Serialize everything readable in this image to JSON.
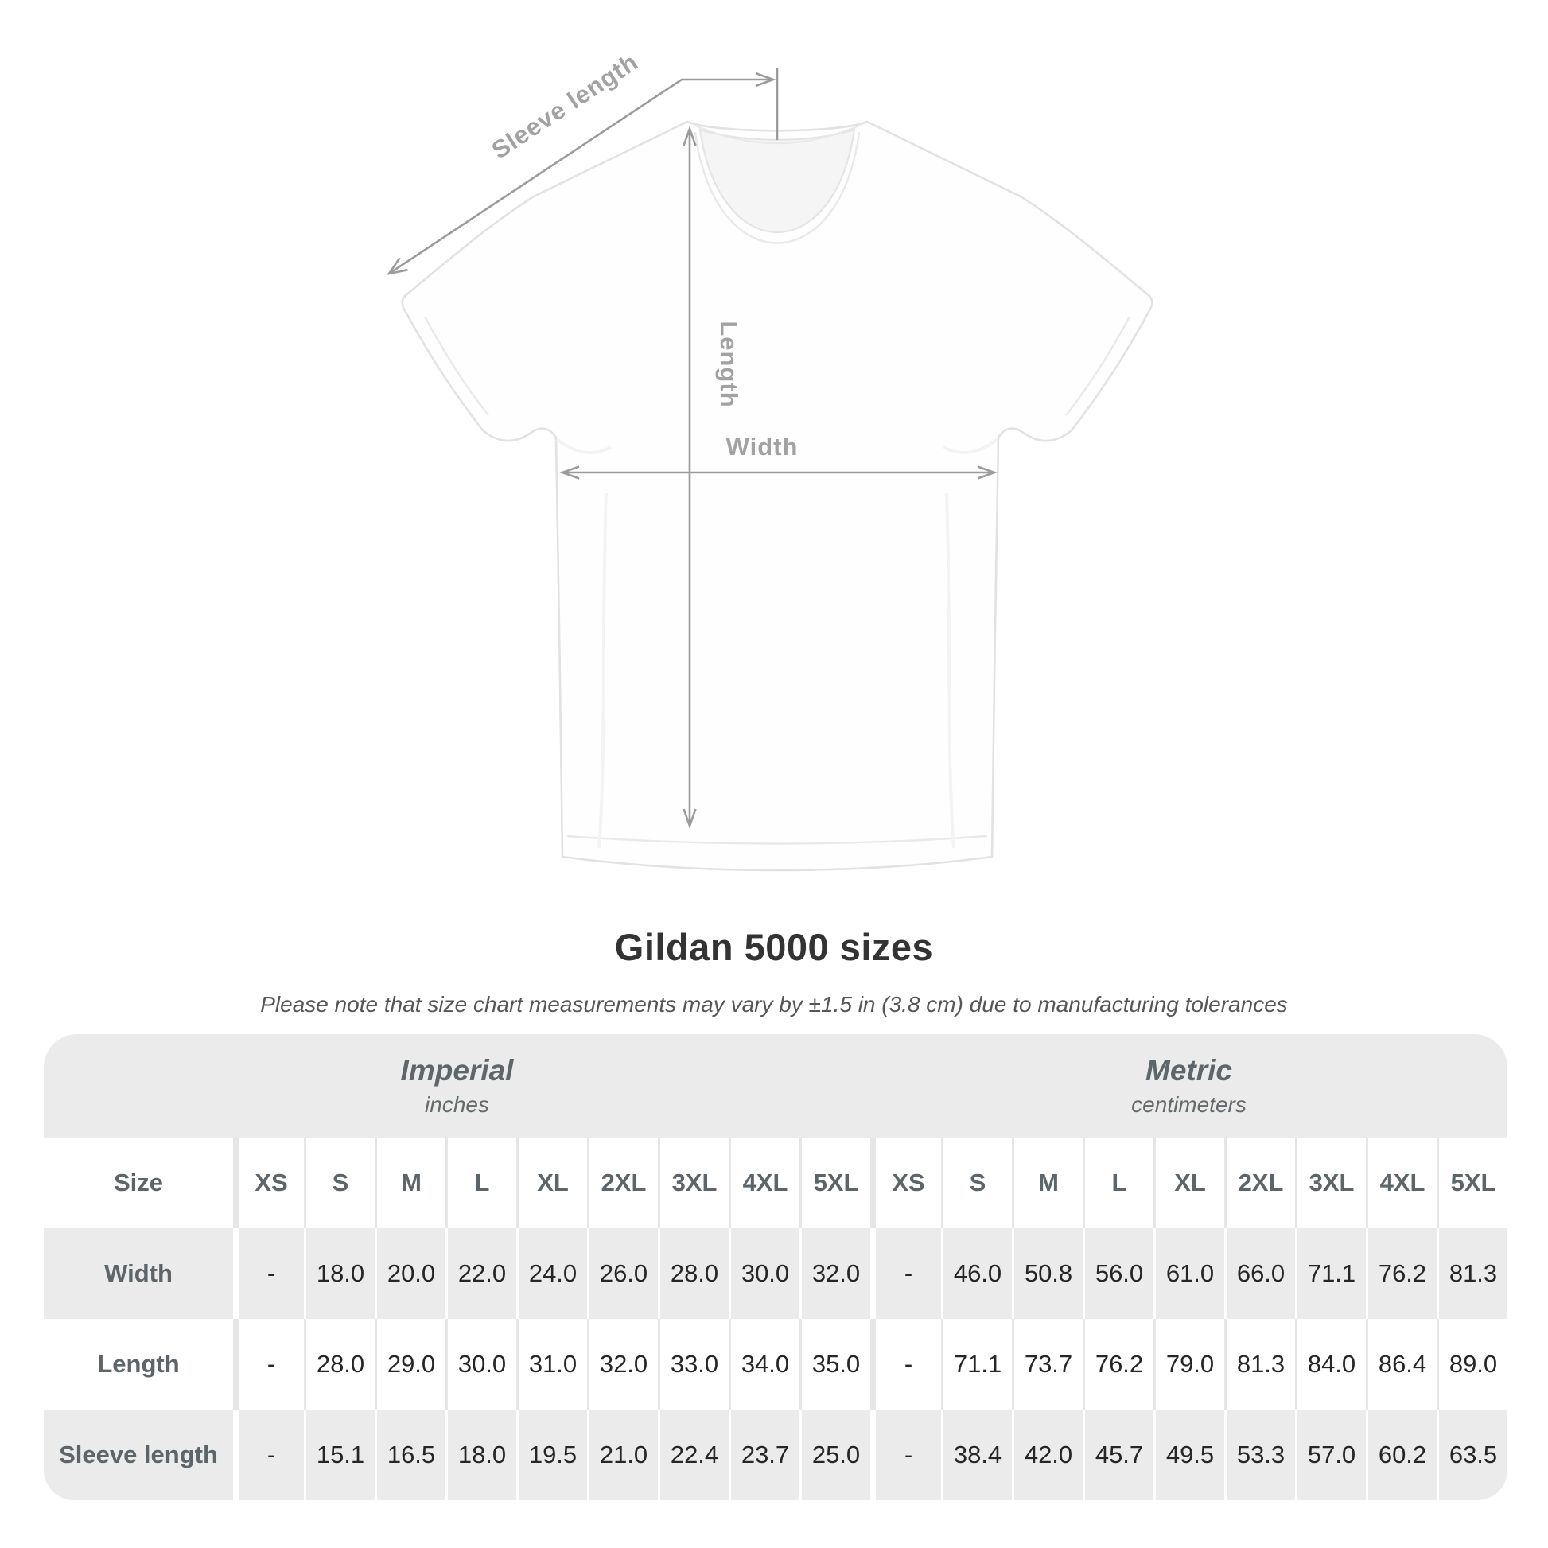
{
  "title": "Gildan 5000 sizes",
  "subtitle": "Please note that size chart measurements may vary by ±1.5 in (3.8 cm) due to manufacturing tolerances",
  "diagram": {
    "sleeve_length_label": "Sleeve length",
    "length_label": "Length",
    "width_label": "Width",
    "annotation_color": "#9b9b9b",
    "shirt_color": "#ffffff"
  },
  "table": {
    "size_header": "Size",
    "sizes": [
      "XS",
      "S",
      "M",
      "L",
      "XL",
      "2XL",
      "3XL",
      "4XL",
      "5XL"
    ],
    "groups": [
      {
        "label": "Imperial",
        "sublabel": "inches"
      },
      {
        "label": "Metric",
        "sublabel": "centimeters"
      }
    ],
    "rows": [
      {
        "label": "Width",
        "imperial": [
          "-",
          "18.0",
          "20.0",
          "22.0",
          "24.0",
          "26.0",
          "28.0",
          "30.0",
          "32.0"
        ],
        "metric": [
          "-",
          "46.0",
          "50.8",
          "56.0",
          "61.0",
          "66.0",
          "71.1",
          "76.2",
          "81.3"
        ]
      },
      {
        "label": "Length",
        "imperial": [
          "-",
          "28.0",
          "29.0",
          "30.0",
          "31.0",
          "32.0",
          "33.0",
          "34.0",
          "35.0"
        ],
        "metric": [
          "-",
          "71.1",
          "73.7",
          "76.2",
          "79.0",
          "81.3",
          "84.0",
          "86.4",
          "89.0"
        ]
      },
      {
        "label": "Sleeve length",
        "imperial": [
          "-",
          "15.1",
          "16.5",
          "18.0",
          "19.5",
          "21.0",
          "22.4",
          "23.7",
          "25.0"
        ],
        "metric": [
          "-",
          "38.4",
          "42.0",
          "45.7",
          "49.5",
          "53.3",
          "57.0",
          "60.2",
          "63.5"
        ]
      }
    ],
    "colors": {
      "band_bg": "#ebebeb",
      "alt_row_bg": "#ebebeb",
      "header_text": "#5c6569",
      "value_text": "#262626"
    }
  },
  "chart_data": {
    "type": "table",
    "title": "Gildan 5000 sizes",
    "note": "Please note that size chart measurements may vary by ±1.5 in (3.8 cm) due to manufacturing tolerances",
    "columns": [
      "Size",
      "XS",
      "S",
      "M",
      "L",
      "XL",
      "2XL",
      "3XL",
      "4XL",
      "5XL"
    ],
    "units": {
      "imperial": "inches",
      "metric": "centimeters"
    },
    "rows_imperial": [
      {
        "measure": "Width",
        "values": [
          null,
          18.0,
          20.0,
          22.0,
          24.0,
          26.0,
          28.0,
          30.0,
          32.0
        ]
      },
      {
        "measure": "Length",
        "values": [
          null,
          28.0,
          29.0,
          30.0,
          31.0,
          32.0,
          33.0,
          34.0,
          35.0
        ]
      },
      {
        "measure": "Sleeve length",
        "values": [
          null,
          15.1,
          16.5,
          18.0,
          19.5,
          21.0,
          22.4,
          23.7,
          25.0
        ]
      }
    ],
    "rows_metric": [
      {
        "measure": "Width",
        "values": [
          null,
          46.0,
          50.8,
          56.0,
          61.0,
          66.0,
          71.1,
          76.2,
          81.3
        ]
      },
      {
        "measure": "Length",
        "values": [
          null,
          71.1,
          73.7,
          76.2,
          79.0,
          81.3,
          84.0,
          86.4,
          89.0
        ]
      },
      {
        "measure": "Sleeve length",
        "values": [
          null,
          38.4,
          42.0,
          45.7,
          49.5,
          53.3,
          57.0,
          60.2,
          63.5
        ]
      }
    ]
  }
}
